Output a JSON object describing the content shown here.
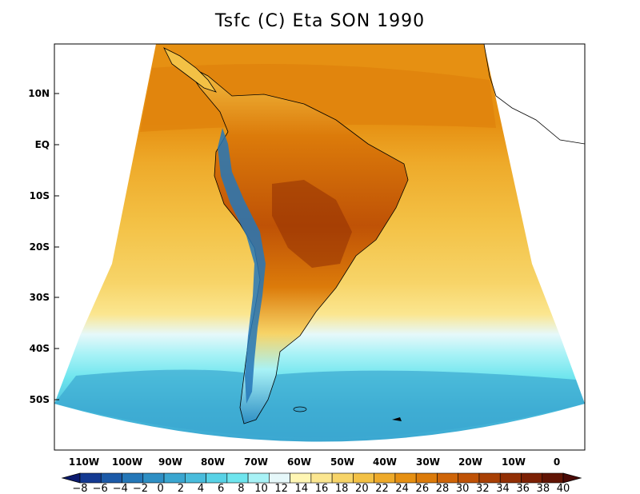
{
  "title": "Tsfc (C) Eta SON 1990",
  "latitude_labels": [
    "10N",
    "EQ",
    "10S",
    "20S",
    "30S",
    "40S",
    "50S"
  ],
  "longitude_labels": [
    "110W",
    "100W",
    "90W",
    "80W",
    "70W",
    "60W",
    "50W",
    "40W",
    "30W",
    "20W",
    "10W",
    "0"
  ],
  "colorbar": {
    "labels": [
      "-8",
      "-6",
      "-4",
      "-2",
      "0",
      "2",
      "4",
      "6",
      "8",
      "10",
      "12",
      "14",
      "16",
      "18",
      "20",
      "22",
      "24",
      "26",
      "28",
      "30",
      "32",
      "34",
      "36",
      "38",
      "40"
    ],
    "colors": [
      "#0b1a6e",
      "#143a92",
      "#1c5aa8",
      "#2477b8",
      "#2e8fc4",
      "#3aa6d0",
      "#49bcdc",
      "#58d2e6",
      "#6ee5ee",
      "#a8f2f6",
      "#e6f8fa",
      "#fff6b4",
      "#fbe690",
      "#f7d468",
      "#f3c145",
      "#eeaa2a",
      "#e69012",
      "#dc7b0a",
      "#cf6508",
      "#bf5206",
      "#a94005",
      "#922f04",
      "#7c2004",
      "#611404",
      "#4a0a06"
    ]
  },
  "chart_data": {
    "type": "heatmap",
    "title": "Tsfc (C) Eta SON 1990",
    "variable": "Tsfc",
    "units": "C",
    "model": "Eta",
    "season": "SON",
    "year": 1990,
    "lat_ticks": [
      "10N",
      "EQ",
      "10S",
      "20S",
      "30S",
      "40S",
      "50S"
    ],
    "lon_ticks": [
      "110W",
      "100W",
      "90W",
      "80W",
      "70W",
      "60W",
      "50W",
      "40W",
      "30W",
      "20W",
      "10W",
      "0"
    ],
    "colorbar_levels": [
      -8,
      -6,
      -4,
      -2,
      0,
      2,
      4,
      6,
      8,
      10,
      12,
      14,
      16,
      18,
      20,
      22,
      24,
      26,
      28,
      30,
      32,
      34,
      36,
      38,
      40
    ]
  }
}
